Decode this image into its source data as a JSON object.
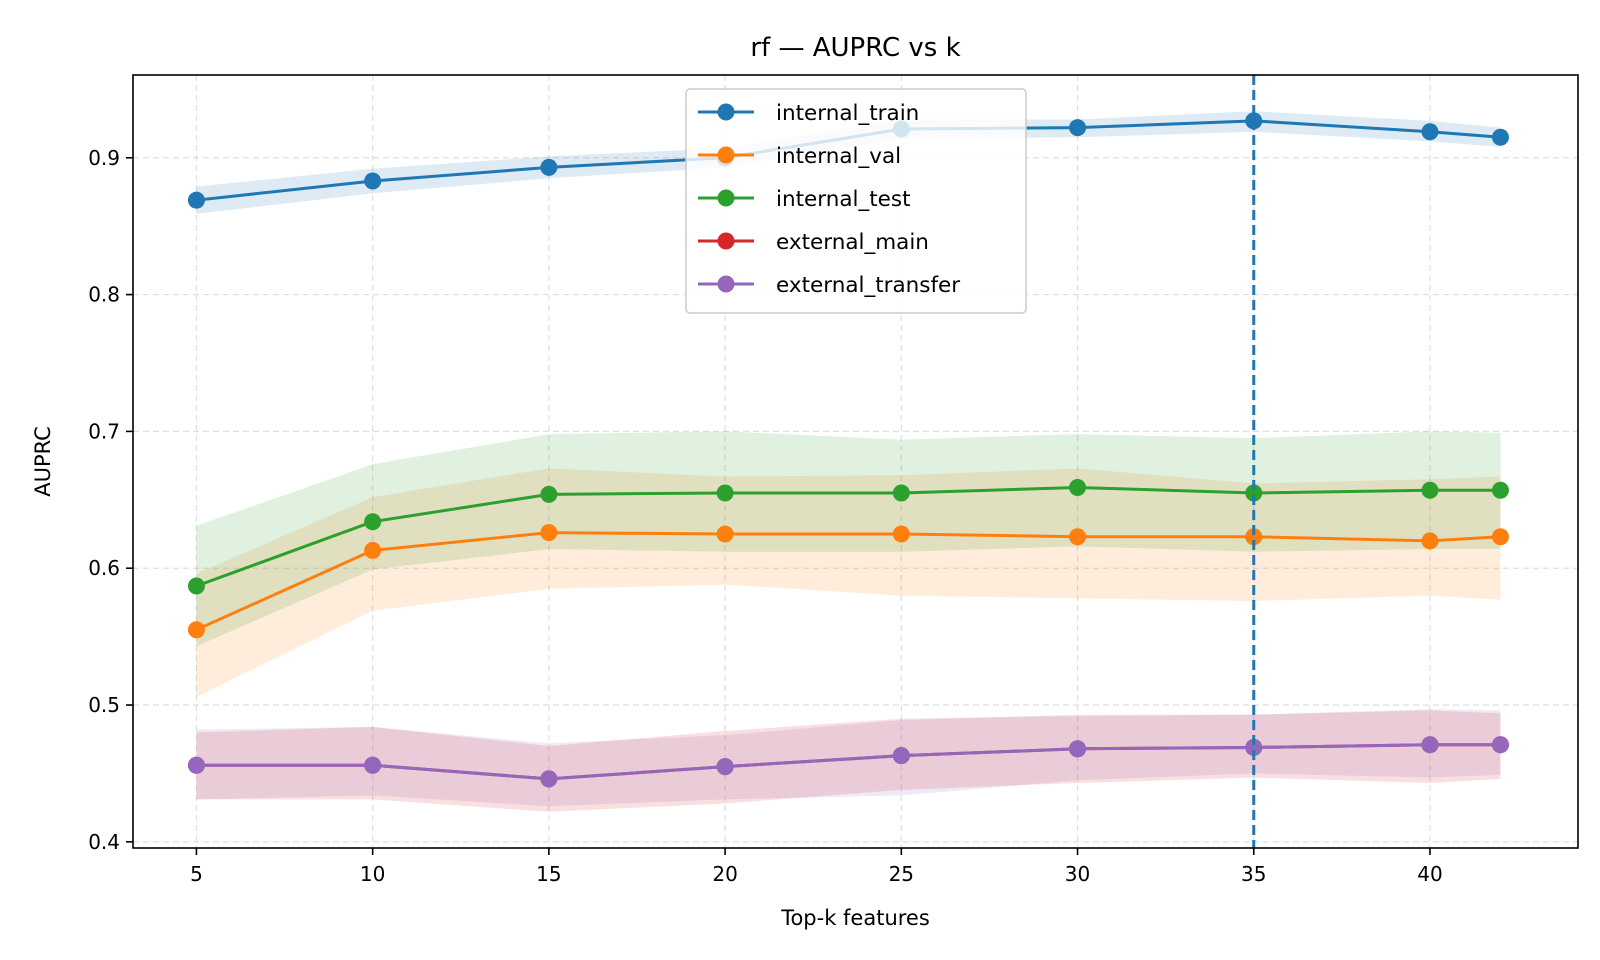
{
  "chart_data": {
    "type": "line",
    "title": "rf — AUPRC vs k",
    "xlabel": "Top-k features",
    "ylabel": "AUPRC",
    "xlim": [
      3.2,
      44.2
    ],
    "ylim": [
      0.3955,
      0.9605
    ],
    "xticks": [
      5,
      10,
      15,
      20,
      25,
      30,
      35,
      40
    ],
    "yticks": [
      0.4,
      0.5,
      0.6,
      0.7,
      0.8,
      0.9
    ],
    "ytick_labels": [
      "0.4",
      "0.5",
      "0.6",
      "0.7",
      "0.8",
      "0.9"
    ],
    "grid": true,
    "legend_position": "upper-center",
    "vline": {
      "x": 35,
      "style": "dashed",
      "color": "#1f77b4"
    },
    "x": [
      5,
      10,
      15,
      20,
      25,
      30,
      35,
      40,
      42
    ],
    "series": [
      {
        "name": "internal_train",
        "color": "#1f77b4",
        "values": [
          0.869,
          0.883,
          0.893,
          0.9,
          0.921,
          0.922,
          0.927,
          0.919,
          0.915
        ],
        "lower": [
          0.859,
          0.874,
          0.885,
          0.893,
          0.914,
          0.915,
          0.919,
          0.912,
          0.908
        ],
        "upper": [
          0.879,
          0.892,
          0.901,
          0.907,
          0.928,
          0.928,
          0.934,
          0.927,
          0.922
        ]
      },
      {
        "name": "internal_val",
        "color": "#ff7f0e",
        "values": [
          0.555,
          0.613,
          0.626,
          0.625,
          0.625,
          0.623,
          0.623,
          0.62,
          0.623
        ],
        "lower": [
          0.506,
          0.569,
          0.585,
          0.588,
          0.58,
          0.578,
          0.576,
          0.58,
          0.577
        ],
        "upper": [
          0.596,
          0.652,
          0.673,
          0.667,
          0.668,
          0.673,
          0.662,
          0.665,
          0.667
        ]
      },
      {
        "name": "internal_test",
        "color": "#2ca02c",
        "values": [
          0.587,
          0.634,
          0.654,
          0.655,
          0.655,
          0.659,
          0.655,
          0.657,
          0.657
        ],
        "lower": [
          0.543,
          0.599,
          0.614,
          0.612,
          0.612,
          0.616,
          0.612,
          0.614,
          0.614
        ],
        "upper": [
          0.631,
          0.676,
          0.698,
          0.7,
          0.694,
          0.698,
          0.695,
          0.7,
          0.699
        ]
      },
      {
        "name": "external_main",
        "color": "#d62728",
        "values": [
          0.456,
          0.456,
          0.446,
          0.455,
          0.463,
          0.468,
          0.469,
          0.471,
          0.471
        ],
        "lower": [
          0.431,
          0.431,
          0.422,
          0.428,
          0.438,
          0.443,
          0.447,
          0.443,
          0.446
        ],
        "upper": [
          0.48,
          0.484,
          0.47,
          0.481,
          0.49,
          0.492,
          0.493,
          0.496,
          0.494
        ]
      },
      {
        "name": "external_transfer",
        "color": "#9467bd",
        "values": [
          0.456,
          0.456,
          0.446,
          0.455,
          0.463,
          0.468,
          0.469,
          0.471,
          0.471
        ],
        "lower": [
          0.431,
          0.434,
          0.426,
          0.431,
          0.434,
          0.445,
          0.45,
          0.447,
          0.449
        ],
        "upper": [
          0.482,
          0.484,
          0.472,
          0.478,
          0.489,
          0.493,
          0.493,
          0.497,
          0.496
        ]
      }
    ]
  }
}
